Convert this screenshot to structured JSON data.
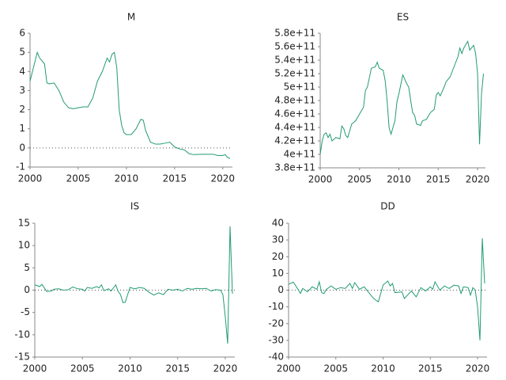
{
  "chart_data": [
    {
      "type": "line",
      "title": "M",
      "color": "#229b72",
      "grid": false,
      "reference_line": 0,
      "xlim": [
        2000,
        2021
      ],
      "xticks": [
        2000,
        2005,
        2010,
        2015,
        2020
      ],
      "ylim": [
        -1,
        6
      ],
      "yticks": [
        -1,
        0,
        1,
        2,
        3,
        4,
        5,
        6
      ],
      "x": [
        2000,
        2000.5,
        2000.75,
        2001,
        2001.5,
        2001.75,
        2002,
        2002.5,
        2003,
        2003.5,
        2004,
        2004.5,
        2005,
        2005.5,
        2006,
        2006.5,
        2007,
        2007.5,
        2008,
        2008.25,
        2008.5,
        2008.75,
        2009,
        2009.25,
        2009.5,
        2009.75,
        2010,
        2010.5,
        2011,
        2011.5,
        2011.75,
        2012,
        2012.5,
        2013,
        2013.5,
        2014,
        2014.5,
        2015,
        2015.5,
        2016,
        2016.5,
        2017,
        2018,
        2019,
        2019.5,
        2020,
        2020.25,
        2020.5,
        2020.75
      ],
      "values": [
        3.5,
        4.5,
        5.0,
        4.7,
        4.4,
        3.4,
        3.35,
        3.4,
        3.0,
        2.4,
        2.1,
        2.05,
        2.1,
        2.15,
        2.15,
        2.6,
        3.5,
        4.0,
        4.7,
        4.5,
        4.9,
        5.0,
        4.2,
        2.0,
        1.2,
        0.8,
        0.7,
        0.7,
        1.0,
        1.5,
        1.45,
        0.9,
        0.3,
        0.2,
        0.2,
        0.25,
        0.3,
        0.05,
        -0.05,
        -0.1,
        -0.3,
        -0.35,
        -0.33,
        -0.33,
        -0.4,
        -0.4,
        -0.35,
        -0.5,
        -0.55
      ]
    },
    {
      "type": "line",
      "title": "ES",
      "color": "#229b72",
      "grid": false,
      "xlim": [
        2000,
        2021
      ],
      "xticks": [
        2000,
        2005,
        2010,
        2015,
        2020
      ],
      "ylim": [
        380000000000.0,
        580000000000.0
      ],
      "yticks": [
        {
          "value": 380000000000.0,
          "label": "3.8e+11"
        },
        {
          "value": 400000000000.0,
          "label": "4e+11"
        },
        {
          "value": 420000000000.0,
          "label": "4.2e+11"
        },
        {
          "value": 440000000000.0,
          "label": "4.4e+11"
        },
        {
          "value": 460000000000.0,
          "label": "4.6e+11"
        },
        {
          "value": 480000000000.0,
          "label": "4.8e+11"
        },
        {
          "value": 500000000000.0,
          "label": "5e+11"
        },
        {
          "value": 520000000000.0,
          "label": "5.2e+11"
        },
        {
          "value": 540000000000.0,
          "label": "5.4e+11"
        },
        {
          "value": 560000000000.0,
          "label": "5.6e+11"
        },
        {
          "value": 580000000000.0,
          "label": "5.8e+11"
        }
      ],
      "x": [
        2000,
        2000.25,
        2000.5,
        2000.75,
        2001,
        2001.25,
        2001.5,
        2002,
        2002.5,
        2002.75,
        2003,
        2003.25,
        2003.5,
        2004,
        2004.5,
        2005,
        2005.5,
        2005.75,
        2006,
        2006.5,
        2007,
        2007.25,
        2007.5,
        2008,
        2008.25,
        2008.5,
        2008.75,
        2009,
        2009.5,
        2009.75,
        2010,
        2010.5,
        2011,
        2011.25,
        2011.5,
        2011.75,
        2012,
        2012.25,
        2012.75,
        2013,
        2013.5,
        2014,
        2014.5,
        2014.75,
        2015,
        2015.25,
        2015.75,
        2016,
        2016.5,
        2017,
        2017.5,
        2017.75,
        2018,
        2018.25,
        2018.75,
        2019,
        2019.5,
        2019.75,
        2020,
        2020.25,
        2020.5,
        2020.75
      ],
      "values": [
        400000000000.0,
        420000000000.0,
        430000000000.0,
        432000000000.0,
        425000000000.0,
        430000000000.0,
        420000000000.0,
        425000000000.0,
        423000000000.0,
        442000000000.0,
        438000000000.0,
        428000000000.0,
        425000000000.0,
        445000000000.0,
        450000000000.0,
        460000000000.0,
        470000000000.0,
        495000000000.0,
        500000000000.0,
        528000000000.0,
        530000000000.0,
        537000000000.0,
        528000000000.0,
        525000000000.0,
        510000000000.0,
        480000000000.0,
        440000000000.0,
        430000000000.0,
        450000000000.0,
        478000000000.0,
        490000000000.0,
        518000000000.0,
        505000000000.0,
        500000000000.0,
        480000000000.0,
        462000000000.0,
        458000000000.0,
        445000000000.0,
        443000000000.0,
        450000000000.0,
        452000000000.0,
        462000000000.0,
        467000000000.0,
        488000000000.0,
        492000000000.0,
        487000000000.0,
        500000000000.0,
        508000000000.0,
        515000000000.0,
        530000000000.0,
        545000000000.0,
        558000000000.0,
        550000000000.0,
        558000000000.0,
        568000000000.0,
        555000000000.0,
        562000000000.0,
        550000000000.0,
        520000000000.0,
        415000000000.0,
        490000000000.0,
        520000000000.0
      ]
    },
    {
      "type": "line",
      "title": "IS",
      "color": "#229b72",
      "grid": false,
      "reference_line": 0,
      "xlim": [
        2000,
        2021
      ],
      "xticks": [
        2000,
        2005,
        2010,
        2015,
        2020
      ],
      "ylim": [
        -15,
        15
      ],
      "yticks": [
        -15,
        -10,
        -5,
        0,
        5,
        10,
        15
      ],
      "x": [
        2000,
        2000.5,
        2000.75,
        2001,
        2001.25,
        2001.75,
        2002,
        2002.5,
        2003,
        2003.5,
        2004,
        2004.5,
        2005,
        2005.25,
        2005.5,
        2006,
        2006.5,
        2006.75,
        2007,
        2007.25,
        2007.75,
        2008,
        2008.5,
        2008.75,
        2009,
        2009.25,
        2009.5,
        2009.75,
        2010,
        2010.5,
        2011,
        2011.5,
        2012,
        2012.5,
        2013,
        2013.5,
        2014,
        2014.5,
        2015,
        2015.5,
        2016,
        2016.5,
        2017,
        2017.5,
        2018,
        2018.5,
        2019,
        2019.5,
        2019.75,
        2020,
        2020.25,
        2020.5,
        2020.75
      ],
      "values": [
        1.2,
        0.8,
        1.3,
        0.5,
        -0.3,
        -0.2,
        0.2,
        0.3,
        0,
        0.1,
        0.7,
        0.3,
        0.2,
        -0.2,
        0.6,
        0.4,
        0.8,
        0.5,
        1.2,
        -0.1,
        0.3,
        -0.2,
        1.2,
        -0.3,
        -1,
        -2.8,
        -2.7,
        -1,
        0.6,
        0.3,
        0.6,
        0.4,
        -0.5,
        -1.1,
        -0.6,
        -1.0,
        0.2,
        0,
        0.2,
        -0.2,
        0.4,
        0.2,
        0.4,
        0.3,
        0.4,
        -0.2,
        0.1,
        0,
        -1,
        -6,
        -12,
        14.3,
        -0.8
      ]
    },
    {
      "type": "line",
      "title": "DD",
      "color": "#229b72",
      "grid": false,
      "reference_line": 0,
      "xlim": [
        2000,
        2021
      ],
      "xticks": [
        2000,
        2005,
        2010,
        2015,
        2020
      ],
      "ylim": [
        -40,
        40
      ],
      "yticks": [
        -40,
        -30,
        -20,
        -10,
        0,
        10,
        20,
        30,
        40
      ],
      "x": [
        2000,
        2000.5,
        2001,
        2001.25,
        2001.5,
        2002,
        2002.5,
        2003,
        2003.25,
        2003.5,
        2003.75,
        2004,
        2004.5,
        2005,
        2005.5,
        2006,
        2006.5,
        2006.75,
        2007,
        2007.5,
        2008,
        2008.5,
        2009,
        2009.5,
        2009.75,
        2010,
        2010.5,
        2010.75,
        2011,
        2011.25,
        2012,
        2012.25,
        2012.75,
        2013,
        2013.5,
        2014,
        2014.5,
        2015,
        2015.25,
        2015.5,
        2016,
        2016.5,
        2017,
        2017.5,
        2018,
        2018.25,
        2018.5,
        2019,
        2019.25,
        2019.5,
        2019.75,
        2020,
        2020.25,
        2020.5,
        2020.75
      ],
      "values": [
        3.5,
        4.8,
        0.5,
        -2,
        1,
        -1,
        2,
        0.5,
        5,
        -1.5,
        -2,
        0.5,
        2.5,
        0.5,
        1.5,
        1,
        4,
        1,
        4.5,
        0.5,
        2,
        -1.5,
        -5,
        -7,
        -2,
        3,
        5.5,
        2.5,
        4,
        -1.5,
        -1,
        -5,
        -2,
        -0.5,
        -4,
        1.5,
        -0.5,
        2,
        0.5,
        5,
        0,
        2.5,
        1,
        3,
        2.5,
        -2,
        2,
        1.5,
        -3,
        1.5,
        0,
        -10,
        -30,
        31,
        4
      ]
    }
  ]
}
